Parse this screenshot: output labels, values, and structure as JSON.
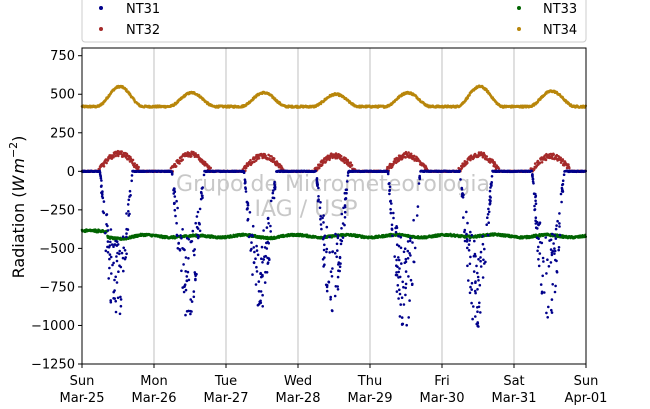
{
  "chart_data": {
    "type": "scatter",
    "title": "",
    "ylabel": "Radiation (W m^-2)",
    "ylabel_prefix": "Radiation (",
    "ylabel_unit_W": "W",
    "ylabel_unit_m": "m",
    "ylabel_exponent": "−2",
    "ylabel_suffix": ")",
    "xlabel": "",
    "ylim": [
      -1250,
      800
    ],
    "xlim": [
      0,
      7
    ],
    "yticks": [
      750,
      500,
      250,
      0,
      -250,
      -500,
      -750,
      -1000,
      -1250
    ],
    "ytick_labels": [
      "750",
      "500",
      "250",
      "0",
      "−250",
      "−500",
      "−750",
      "−1000",
      "−1250"
    ],
    "xticks": [
      0,
      1,
      2,
      3,
      4,
      5,
      6,
      7
    ],
    "xtick_labels": [
      [
        "Sun",
        "Mar-25"
      ],
      [
        "Mon",
        "Mar-26"
      ],
      [
        "Tue",
        "Mar-27"
      ],
      [
        "Wed",
        "Mar-28"
      ],
      [
        "Thu",
        "Mar-29"
      ],
      [
        "Fri",
        "Mar-30"
      ],
      [
        "Sat",
        "Mar-31"
      ],
      [
        "Sun",
        "Apr-01"
      ]
    ],
    "grid": "vertical",
    "legend": "top",
    "watermark": [
      "Grupo de Micrometeorologia",
      "IAG / USP"
    ],
    "series": [
      {
        "name": "NT31",
        "color": "#00008b",
        "base": 0,
        "daily_min": [
          -960,
          -940,
          -880,
          -910,
          -1000,
          -1010,
          -970
        ]
      },
      {
        "name": "NT32",
        "color": "#a52a2a",
        "base": 0,
        "daily_peak": [
          115,
          110,
          100,
          100,
          105,
          110,
          100
        ]
      },
      {
        "name": "NT33",
        "color": "#006400",
        "base": -420,
        "daily_min": [
          -440,
          -430,
          -430,
          -420,
          -420,
          -410,
          -420
        ]
      },
      {
        "name": "NT34",
        "color": "#b8860b",
        "base": 420,
        "daily_peak": [
          550,
          510,
          510,
          500,
          510,
          550,
          520
        ]
      }
    ]
  }
}
